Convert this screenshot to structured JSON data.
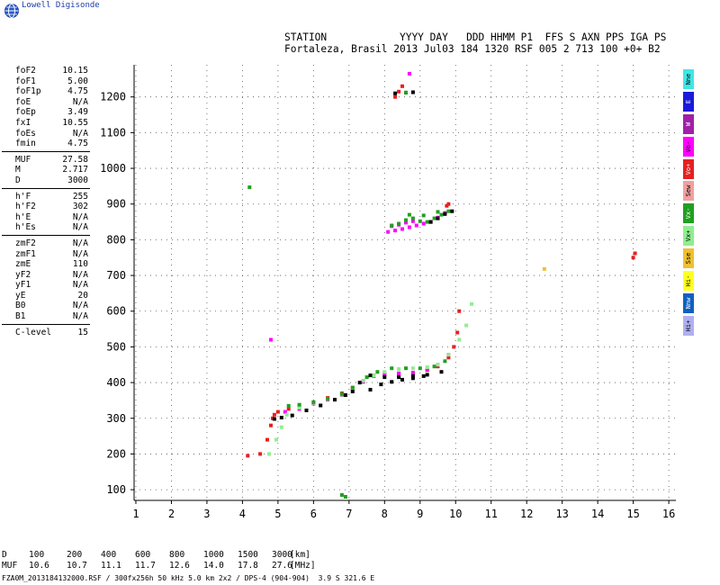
{
  "logo": {
    "icon": "globe-icon",
    "text": "Lowell Digisonde"
  },
  "header": {
    "line1": "STATION            YYYY DAY   DDD HHMM P1  FFS S AXN PPS IGA PS",
    "line2": "Fortaleza, Brasil 2013 Jul03 184 1320 RSF 005 2 713 100 +0+ B2"
  },
  "params": [
    {
      "k": "foF2",
      "v": "10.15"
    },
    {
      "k": "foF1",
      "v": "5.00"
    },
    {
      "k": "foF1p",
      "v": "4.75"
    },
    {
      "k": "foE",
      "v": "N/A"
    },
    {
      "k": "foEp",
      "v": "3.49"
    },
    {
      "k": "fxI",
      "v": "10.55"
    },
    {
      "k": "foEs",
      "v": "N/A"
    },
    {
      "k": "fmin",
      "v": "4.75"
    },
    {
      "sep": true
    },
    {
      "k": "MUF",
      "v": "27.58"
    },
    {
      "k": "M",
      "v": "2.717"
    },
    {
      "k": "D",
      "v": "3000"
    },
    {
      "sep": true
    },
    {
      "k": "h'F",
      "v": "255"
    },
    {
      "k": "h'F2",
      "v": "302"
    },
    {
      "k": "h'E",
      "v": "N/A"
    },
    {
      "k": "h'Es",
      "v": "N/A"
    },
    {
      "sep": true
    },
    {
      "k": "zmF2",
      "v": "N/A"
    },
    {
      "k": "zmF1",
      "v": "N/A"
    },
    {
      "k": "zmE",
      "v": "110"
    },
    {
      "k": "yF2",
      "v": "N/A"
    },
    {
      "k": "yF1",
      "v": "N/A"
    },
    {
      "k": "yE",
      "v": "20"
    },
    {
      "k": "B0",
      "v": "N/A"
    },
    {
      "k": "B1",
      "v": "N/A"
    },
    {
      "sep": true
    },
    {
      "k": "C-level",
      "v": "15"
    }
  ],
  "legend": [
    {
      "label": "Nne",
      "color": "#40e6e6"
    },
    {
      "label": "E",
      "color": "#1a1adb"
    },
    {
      "label": "W",
      "color": "#a020a8"
    },
    {
      "label": "Vo-",
      "color": "#ff00ff"
    },
    {
      "label": "Vo+",
      "color": "#e62020"
    },
    {
      "label": "Sew",
      "color": "#f0a0a0"
    },
    {
      "label": "Vx-",
      "color": "#20a020"
    },
    {
      "label": "Vx+",
      "color": "#90ee90"
    },
    {
      "label": "Sse",
      "color": "#f0c030"
    },
    {
      "label": "Hi-",
      "color": "#ffff20"
    },
    {
      "label": "Nnw",
      "color": "#1060c0"
    },
    {
      "label": "Hi+",
      "color": "#b0b0f0"
    }
  ],
  "bottom": {
    "d_label": "D",
    "d_values": [
      "100",
      "200",
      "400",
      "600",
      "800",
      "1000",
      "1500",
      "3000"
    ],
    "d_unit": "[km]",
    "muf_label": "MUF",
    "muf_values": [
      "10.6",
      "10.7",
      "11.1",
      "11.7",
      "12.6",
      "14.0",
      "17.8",
      "27.6"
    ],
    "muf_unit": "[MHz]"
  },
  "footer": "FZA0M_2013184132000.RSF / 300fx256h 50 kHz 5.0 km 2x2 / DPS-4 (904-904)  3.9 S 321.6 E",
  "chart_data": {
    "type": "scatter",
    "xlim": [
      0.95,
      16.2
    ],
    "ylim": [
      70,
      1290
    ],
    "xticks": [
      "1",
      "2",
      "3",
      "4",
      "5",
      "6",
      "7",
      "8",
      "9",
      "10",
      "11",
      "12",
      "13",
      "14",
      "15",
      "16"
    ],
    "yticks": [
      "100",
      "200",
      "300",
      "400",
      "500",
      "600",
      "700",
      "800",
      "900",
      "1000",
      "1100",
      "1200"
    ],
    "grid": true,
    "legend_position": "right",
    "series": [
      {
        "color": "#e62020",
        "x": [
          4.15,
          4.5,
          4.7,
          4.8,
          4.85,
          4.9,
          5.0,
          5.3,
          5.6,
          6.0,
          6.4,
          6.8,
          7.1,
          7.4,
          7.7,
          8.0,
          8.4,
          8.8,
          9.2,
          9.5,
          9.8,
          9.95,
          10.05,
          10.1
        ],
        "y": [
          195,
          200,
          240,
          280,
          300,
          310,
          318,
          326,
          334,
          345,
          357,
          370,
          385,
          405,
          420,
          425,
          425,
          428,
          435,
          445,
          470,
          500,
          540,
          600
        ]
      },
      {
        "color": "#ff00ff",
        "x": [
          5.2,
          5.6,
          6.0,
          6.4,
          6.8,
          7.1,
          7.4,
          7.7,
          8.0,
          8.4,
          8.8,
          9.2,
          9.5,
          9.8
        ],
        "y": [
          318,
          326,
          341,
          352,
          365,
          380,
          402,
          418,
          424,
          426,
          428,
          437,
          450,
          478
        ]
      },
      {
        "color": "#90ee90",
        "x": [
          4.75,
          4.95,
          5.1,
          5.25,
          5.6,
          6.0,
          6.4,
          6.8,
          7.1,
          7.4,
          7.7,
          8.0,
          8.4,
          8.8,
          9.2,
          9.5,
          9.8,
          10.1,
          10.3,
          10.45
        ],
        "y": [
          200,
          240,
          275,
          310,
          330,
          343,
          354,
          366,
          382,
          405,
          420,
          430,
          438,
          440,
          443,
          450,
          478,
          520,
          560,
          620
        ]
      },
      {
        "color": "#20a020",
        "x": [
          5.3,
          5.6,
          6.0,
          6.4,
          6.8,
          7.1,
          7.5,
          7.8,
          8.2,
          8.6,
          9.0,
          9.4,
          9.7
        ],
        "y": [
          335,
          338,
          345,
          355,
          368,
          386,
          415,
          430,
          440,
          440,
          440,
          445,
          460
        ]
      },
      {
        "color": "#000000",
        "x": [
          4.9,
          5.1,
          5.4,
          5.8,
          6.2,
          6.6,
          6.9,
          7.1,
          7.3,
          7.6,
          8.0,
          8.4,
          8.8,
          9.2,
          9.6,
          7.6,
          7.9,
          8.2,
          8.5,
          8.8,
          9.1
        ],
        "y": [
          298,
          302,
          308,
          322,
          336,
          352,
          365,
          375,
          400,
          420,
          415,
          415,
          418,
          422,
          430,
          380,
          395,
          402,
          408,
          412,
          418
        ]
      },
      {
        "color": "#ff00ff",
        "x": [
          8.1,
          8.3,
          8.5,
          8.7,
          8.9,
          9.1,
          9.3,
          9.5,
          9.7,
          8.2,
          8.4,
          8.6,
          8.8
        ],
        "y": [
          822,
          826,
          830,
          835,
          840,
          845,
          850,
          862,
          875,
          838,
          842,
          848,
          852
        ]
      },
      {
        "color": "#20a020",
        "x": [
          8.2,
          8.4,
          8.6,
          8.8,
          9.0,
          9.2,
          9.4,
          9.6,
          9.8,
          8.7,
          9.1,
          9.5
        ],
        "y": [
          840,
          845,
          855,
          860,
          852,
          850,
          860,
          870,
          880,
          870,
          868,
          878
        ]
      },
      {
        "color": "#000000",
        "x": [
          9.3,
          9.5,
          9.7,
          9.9
        ],
        "y": [
          850,
          860,
          872,
          880
        ]
      },
      {
        "color": "#e62020",
        "x": [
          8.3,
          8.4,
          8.5,
          9.75,
          9.8,
          15.0,
          15.05
        ],
        "y": [
          1200,
          1215,
          1230,
          895,
          900,
          750,
          762
        ]
      },
      {
        "color": "#000000",
        "x": [
          8.3,
          8.6,
          8.8
        ],
        "y": [
          1210,
          1212,
          1213
        ]
      },
      {
        "color": "#20a020",
        "x": [
          4.2,
          8.6,
          6.8,
          6.9
        ],
        "y": [
          947,
          1212,
          85,
          80
        ]
      },
      {
        "color": "#f0c030",
        "x": [
          12.5
        ],
        "y": [
          718
        ]
      },
      {
        "color": "#ff00ff",
        "x": [
          4.8,
          8.7
        ],
        "y": [
          520,
          1265
        ]
      }
    ]
  }
}
